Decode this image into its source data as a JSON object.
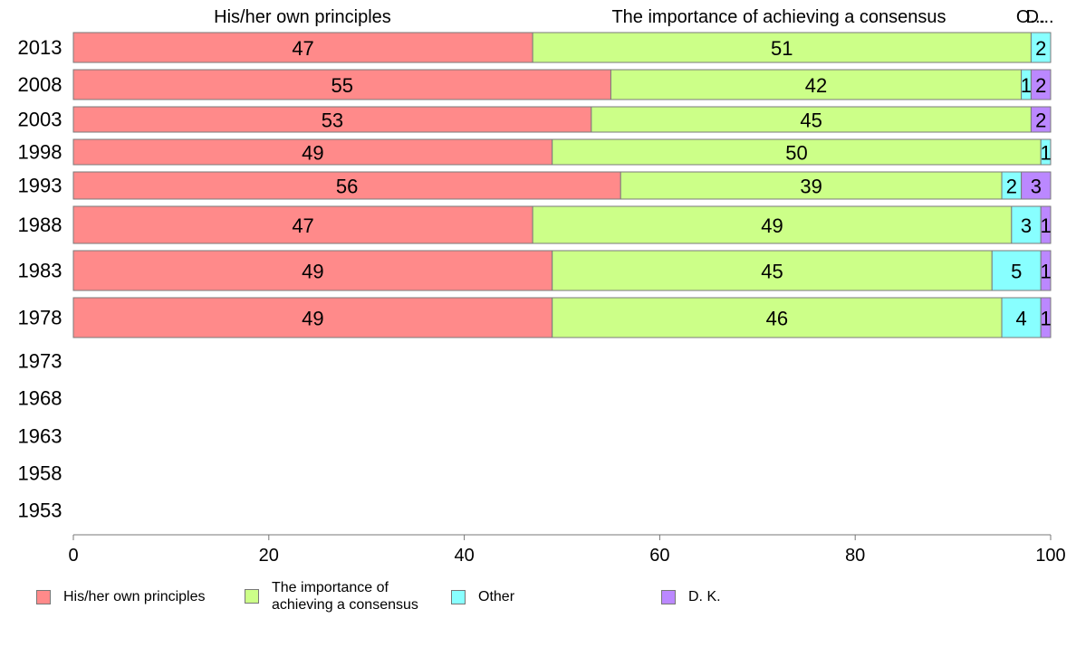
{
  "chart_data": {
    "type": "bar",
    "orientation": "horizontal",
    "stacked": true,
    "categories": [
      "2013",
      "2008",
      "2003",
      "1998",
      "1993",
      "1988",
      "1983",
      "1978",
      "1973",
      "1968",
      "1963",
      "1958",
      "1953"
    ],
    "series": [
      {
        "name": "His/her own principles",
        "color": "#ff8a8a",
        "values": [
          47,
          55,
          53,
          49,
          56,
          47,
          49,
          49,
          null,
          null,
          null,
          null,
          null
        ]
      },
      {
        "name": "The importance of achieving a consensus",
        "color": "#ccff88",
        "values": [
          51,
          42,
          45,
          50,
          39,
          49,
          45,
          46,
          null,
          null,
          null,
          null,
          null
        ]
      },
      {
        "name": "Other",
        "color": "#88ffff",
        "values": [
          2,
          1,
          0,
          1,
          2,
          3,
          5,
          4,
          null,
          null,
          null,
          null,
          null
        ]
      },
      {
        "name": "D. K.",
        "color": "#bb88ff",
        "values": [
          0,
          2,
          2,
          0,
          3,
          1,
          1,
          1,
          null,
          null,
          null,
          null,
          null
        ]
      }
    ],
    "xlim": [
      0,
      100
    ],
    "xticks": [
      0,
      20,
      40,
      60,
      80,
      100
    ],
    "header_labels": [
      "His/her own principles",
      "The importance of achieving a consensus",
      "O...",
      "D..."
    ],
    "legend_labels": [
      "His/her own principles",
      "The importance of\nachieving a consensus",
      "Other",
      "D. K."
    ],
    "legend_position": "bottom",
    "grid": false
  }
}
